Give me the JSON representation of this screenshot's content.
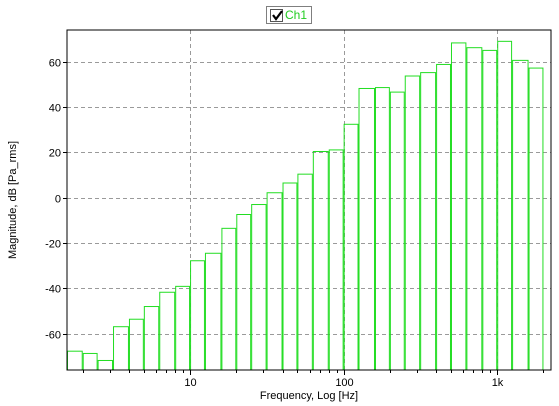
{
  "legend": {
    "label": "Ch1",
    "checked": true
  },
  "chart_data": {
    "type": "bar",
    "xscale": "log",
    "xlabel": "Frequency, Log [Hz]",
    "ylabel": "Magnitude, dB [Pa_rms]",
    "xlim": [
      1.58,
      2240
    ],
    "ylim": [
      -76,
      74
    ],
    "xticks": [
      10,
      100,
      1000
    ],
    "xtick_labels": [
      "10",
      "100",
      "1k"
    ],
    "yticks": [
      -60,
      -40,
      -20,
      0,
      20,
      40,
      60
    ],
    "ytick_labels": [
      "-60",
      "-40",
      "-20",
      "0",
      "20",
      "40",
      "60"
    ],
    "grid": true,
    "series": [
      {
        "name": "Ch1",
        "color": "#22dd22",
        "bands": [
          {
            "lo": 1.58,
            "hi": 2.0,
            "value": -67.7
          },
          {
            "lo": 2.0,
            "hi": 2.5,
            "value": -68.7
          },
          {
            "lo": 2.5,
            "hi": 3.15,
            "value": -71.8
          },
          {
            "lo": 3.15,
            "hi": 4.0,
            "value": -56.9
          },
          {
            "lo": 4.0,
            "hi": 5.0,
            "value": -53.6
          },
          {
            "lo": 5.0,
            "hi": 6.3,
            "value": -48.0
          },
          {
            "lo": 6.3,
            "hi": 8.0,
            "value": -41.7
          },
          {
            "lo": 8.0,
            "hi": 10.0,
            "value": -39.1
          },
          {
            "lo": 10.0,
            "hi": 12.5,
            "value": -27.8
          },
          {
            "lo": 12.5,
            "hi": 16.0,
            "value": -24.5
          },
          {
            "lo": 16.0,
            "hi": 20.0,
            "value": -13.5
          },
          {
            "lo": 20.0,
            "hi": 25.0,
            "value": -7.4
          },
          {
            "lo": 25.0,
            "hi": 31.5,
            "value": -3.0
          },
          {
            "lo": 31.5,
            "hi": 40.0,
            "value": 2.2
          },
          {
            "lo": 40.0,
            "hi": 50.0,
            "value": 6.5
          },
          {
            "lo": 50.0,
            "hi": 63.0,
            "value": 10.4
          },
          {
            "lo": 63.0,
            "hi": 80.0,
            "value": 20.4
          },
          {
            "lo": 80.0,
            "hi": 100.0,
            "value": 21.1
          },
          {
            "lo": 100.0,
            "hi": 125.0,
            "value": 32.4
          },
          {
            "lo": 125.0,
            "hi": 160.0,
            "value": 48.2
          },
          {
            "lo": 160.0,
            "hi": 200.0,
            "value": 48.6
          },
          {
            "lo": 200.0,
            "hi": 250.0,
            "value": 46.6
          },
          {
            "lo": 250.0,
            "hi": 315.0,
            "value": 53.7
          },
          {
            "lo": 315.0,
            "hi": 400.0,
            "value": 55.2
          },
          {
            "lo": 400.0,
            "hi": 500.0,
            "value": 58.8
          },
          {
            "lo": 500.0,
            "hi": 630.0,
            "value": 68.3
          },
          {
            "lo": 630.0,
            "hi": 800.0,
            "value": 66.2
          },
          {
            "lo": 800.0,
            "hi": 1000.0,
            "value": 65.0
          },
          {
            "lo": 1000.0,
            "hi": 1250.0,
            "value": 69.0
          },
          {
            "lo": 1250.0,
            "hi": 1600.0,
            "value": 60.6
          },
          {
            "lo": 1600.0,
            "hi": 2000.0,
            "value": 57.2
          }
        ]
      }
    ]
  }
}
